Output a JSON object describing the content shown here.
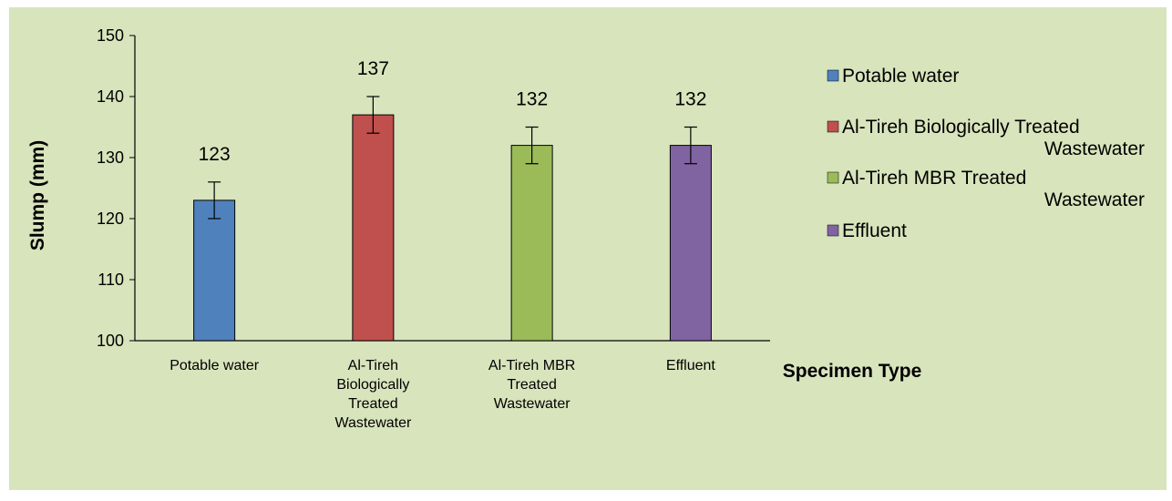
{
  "chart_data": {
    "type": "bar",
    "categories": [
      [
        "Potable water"
      ],
      [
        "Al-Tireh",
        "Biologically",
        "Treated",
        "Wastewater"
      ],
      [
        "Al-Tireh MBR",
        "Treated",
        "Wastewater"
      ],
      [
        "Effluent"
      ]
    ],
    "values": [
      123,
      137,
      132,
      132
    ],
    "data_labels": [
      "123",
      "137",
      "132",
      "132"
    ],
    "error": [
      3,
      3,
      3,
      3
    ],
    "colors": [
      "#4f81bd",
      "#c0504d",
      "#9bbb59",
      "#8064a2"
    ],
    "ylabel": "Slump (mm)",
    "xlabel": "Specimen Type",
    "ylim": [
      100,
      150
    ],
    "yticks": [
      "100",
      "110",
      "120",
      "130",
      "140",
      "150"
    ],
    "legend": {
      "position": "right",
      "entries": [
        {
          "lines": [
            "Potable water"
          ],
          "color": "#4f81bd"
        },
        {
          "lines": [
            "Al-Tireh Biologically Treated",
            "Wastewater"
          ],
          "color": "#c0504d"
        },
        {
          "lines": [
            "Al-Tireh MBR Treated",
            "Wastewater"
          ],
          "color": "#9bbb59"
        },
        {
          "lines": [
            "Effluent"
          ],
          "color": "#8064a2"
        }
      ]
    },
    "background": "#d8e4bc",
    "grid": false
  }
}
